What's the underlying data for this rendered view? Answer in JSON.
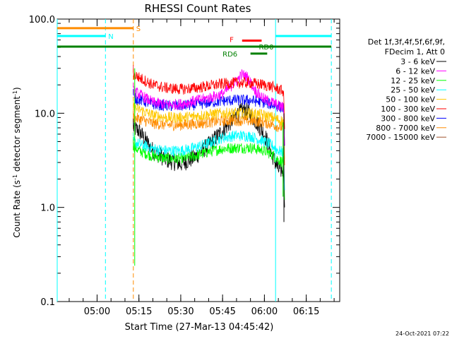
{
  "chart_data": {
    "type": "line",
    "title": "RHESSI Count Rates",
    "xlabel": "Start Time (27-Mar-13 04:45:42)",
    "ylabel_main": "Count Rate (s",
    "ylabel_sup1": "-1",
    "ylabel_mid": " detector segment",
    "ylabel_sup2": "-1",
    "ylabel_end": ")",
    "y_scale": "log",
    "ylim": [
      0.1,
      100.0
    ],
    "xlim_minutes": [
      "04:45:42",
      "06:27:00"
    ],
    "x_ticks": [
      "05:00",
      "05:15",
      "05:30",
      "05:45",
      "06:00",
      "06:15"
    ],
    "y_ticks": [
      "0.1",
      "1.0",
      "10.0",
      "100.0"
    ],
    "timestamp": "24-Oct-2021 07:22",
    "legend_header": [
      "Det 1f,3f,4f,5f,6f,9f,",
      "FDecim 1, Att 0"
    ],
    "series": [
      {
        "name": "3 - 6 keV",
        "color": "#000000",
        "points": [
          [
            "05:13",
            7.0
          ],
          [
            "05:15",
            6.5
          ],
          [
            "05:20",
            4.0
          ],
          [
            "05:25",
            3.2
          ],
          [
            "05:30",
            2.9
          ],
          [
            "05:35",
            3.4
          ],
          [
            "05:40",
            4.6
          ],
          [
            "05:45",
            6.5
          ],
          [
            "05:50",
            9.5
          ],
          [
            "05:53",
            11.0
          ],
          [
            "05:56",
            9.0
          ],
          [
            "06:00",
            6.0
          ],
          [
            "06:03",
            3.5
          ],
          [
            "06:05",
            2.5
          ],
          [
            "06:07",
            2.5
          ]
        ]
      },
      {
        "name": "6 - 12 keV",
        "color": "#ff00ff",
        "points": [
          [
            "05:13",
            17.0
          ],
          [
            "05:15",
            16.0
          ],
          [
            "05:20",
            13.0
          ],
          [
            "05:25",
            12.3
          ],
          [
            "05:30",
            12.5
          ],
          [
            "05:35",
            13.5
          ],
          [
            "05:40",
            14.5
          ],
          [
            "05:45",
            16.0
          ],
          [
            "05:50",
            22.0
          ],
          [
            "05:52",
            26.0
          ],
          [
            "05:54",
            24.0
          ],
          [
            "05:57",
            17.0
          ],
          [
            "06:00",
            14.0
          ],
          [
            "06:03",
            13.0
          ],
          [
            "06:05",
            12.0
          ],
          [
            "06:07",
            11.5
          ]
        ]
      },
      {
        "name": "12 - 25 keV",
        "color": "#00ff00",
        "points": [
          [
            "05:13",
            4.5
          ],
          [
            "05:15",
            4.0
          ],
          [
            "05:20",
            3.5
          ],
          [
            "05:25",
            3.3
          ],
          [
            "05:30",
            3.3
          ],
          [
            "05:35",
            3.5
          ],
          [
            "05:40",
            3.9
          ],
          [
            "05:45",
            4.2
          ],
          [
            "05:50",
            4.3
          ],
          [
            "05:55",
            4.3
          ],
          [
            "06:00",
            4.0
          ],
          [
            "06:03",
            3.6
          ],
          [
            "06:05",
            3.2
          ],
          [
            "06:07",
            3.0
          ]
        ]
      },
      {
        "name": "25 - 50 keV",
        "color": "#00ffff",
        "points": [
          [
            "05:13",
            5.0
          ],
          [
            "05:15",
            4.7
          ],
          [
            "05:20",
            4.2
          ],
          [
            "05:25",
            4.0
          ],
          [
            "05:30",
            4.0
          ],
          [
            "05:35",
            4.3
          ],
          [
            "05:40",
            4.8
          ],
          [
            "05:45",
            5.5
          ],
          [
            "05:50",
            5.8
          ],
          [
            "05:55",
            5.7
          ],
          [
            "06:00",
            5.0
          ],
          [
            "06:03",
            4.5
          ],
          [
            "06:05",
            4.0
          ],
          [
            "06:07",
            3.8
          ]
        ]
      },
      {
        "name": "50 - 100 keV",
        "color": "#ffc800",
        "points": [
          [
            "05:13",
            11.5
          ],
          [
            "05:15",
            11.0
          ],
          [
            "05:20",
            9.5
          ],
          [
            "05:25",
            9.0
          ],
          [
            "05:30",
            9.0
          ],
          [
            "05:35",
            9.3
          ],
          [
            "05:40",
            9.7
          ],
          [
            "05:45",
            10.0
          ],
          [
            "05:50",
            10.0
          ],
          [
            "05:55",
            10.0
          ],
          [
            "06:00",
            9.5
          ],
          [
            "06:03",
            9.0
          ],
          [
            "06:05",
            8.5
          ],
          [
            "06:07",
            8.2
          ]
        ]
      },
      {
        "name": "100 - 300 keV",
        "color": "#ff0000",
        "points": [
          [
            "05:13",
            26.0
          ],
          [
            "05:15",
            24.0
          ],
          [
            "05:20",
            20.0
          ],
          [
            "05:25",
            18.5
          ],
          [
            "05:30",
            18.0
          ],
          [
            "05:35",
            18.5
          ],
          [
            "05:40",
            19.5
          ],
          [
            "05:45",
            20.5
          ],
          [
            "05:50",
            21.0
          ],
          [
            "05:55",
            21.0
          ],
          [
            "06:00",
            20.0
          ],
          [
            "06:03",
            19.0
          ],
          [
            "06:05",
            18.0
          ],
          [
            "06:07",
            17.0
          ]
        ]
      },
      {
        "name": "300 - 800 keV",
        "color": "#0000ff",
        "points": [
          [
            "05:13",
            14.5
          ],
          [
            "05:15",
            14.0
          ],
          [
            "05:20",
            12.5
          ],
          [
            "05:25",
            12.0
          ],
          [
            "05:30",
            12.0
          ],
          [
            "05:35",
            12.3
          ],
          [
            "05:40",
            13.0
          ],
          [
            "05:45",
            13.5
          ],
          [
            "05:50",
            13.8
          ],
          [
            "05:55",
            13.7
          ],
          [
            "06:00",
            13.0
          ],
          [
            "06:03",
            12.3
          ],
          [
            "06:05",
            11.8
          ],
          [
            "06:07",
            11.3
          ]
        ]
      },
      {
        "name": "800 - 7000 keV",
        "color": "#ff8c00",
        "points": [
          [
            "05:13",
            9.0
          ],
          [
            "05:15",
            8.7
          ],
          [
            "05:20",
            7.8
          ],
          [
            "05:25",
            7.5
          ],
          [
            "05:30",
            7.5
          ],
          [
            "05:35",
            7.7
          ],
          [
            "05:40",
            8.0
          ],
          [
            "05:45",
            8.3
          ],
          [
            "05:50",
            8.4
          ],
          [
            "05:55",
            8.3
          ],
          [
            "06:00",
            8.0
          ],
          [
            "06:03",
            7.6
          ],
          [
            "06:05",
            7.2
          ],
          [
            "06:07",
            7.0
          ]
        ]
      },
      {
        "name": "7000 - 15000 keV",
        "color": "#a0522d",
        "points": []
      }
    ],
    "annotations": {
      "saa_label": "S",
      "night_label": "N",
      "flare_label": "F",
      "decimation_label": "RD0",
      "decimation_label2": "RD6"
    }
  }
}
